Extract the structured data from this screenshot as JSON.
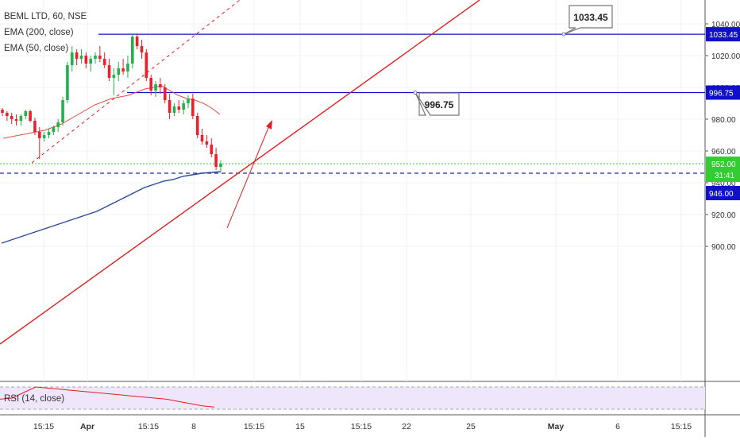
{
  "chart_data": {
    "type": "candlestick",
    "symbol": "BEML LTD, 60, NSE",
    "indicators": [
      "EMA (200, close)",
      "EMA (50, close)"
    ],
    "rsi_label": "RSI (14, close)",
    "colors": {
      "up": "#22b24c",
      "down": "#e8212b",
      "ema200": "#2a4a9a",
      "ema50": "#e34b3f",
      "hline": "#1010c8",
      "trend": "#e02020",
      "current": "#33cc33",
      "rsi_bg": "#efe6fb"
    },
    "y_axis": {
      "ticks": [
        "1040.00",
        "1020.00",
        "1000.00",
        "980.00",
        "960.00",
        "940.00",
        "920.00",
        "900.00"
      ],
      "ylim": [
        895,
        1048
      ]
    },
    "x_axis": {
      "ticks": [
        "15:15",
        "Apr",
        "15:15",
        "8",
        "15:15",
        "15",
        "15:15",
        "22",
        "25",
        "May",
        "6",
        "15:15"
      ]
    },
    "price_labels": {
      "resistance_high": "1033.45",
      "resistance_mid": "996.75",
      "current": "952.00",
      "countdown": "31:41",
      "support": "946.00"
    },
    "callouts": [
      "1033.45",
      "996.75"
    ],
    "candles": [
      [
        986,
        987,
        982,
        984
      ],
      [
        984,
        985,
        979,
        982
      ],
      [
        982,
        984,
        977,
        980
      ],
      [
        980,
        983,
        976,
        979
      ],
      [
        979,
        983,
        976,
        982
      ],
      [
        982,
        986,
        980,
        985
      ],
      [
        985,
        986,
        978,
        979
      ],
      [
        979,
        981,
        970,
        972
      ],
      [
        972,
        975,
        955,
        968
      ],
      [
        968,
        972,
        966,
        970
      ],
      [
        970,
        974,
        968,
        972
      ],
      [
        972,
        976,
        970,
        975
      ],
      [
        975,
        980,
        972,
        978
      ],
      [
        978,
        994,
        976,
        992
      ],
      [
        992,
        1016,
        990,
        1014
      ],
      [
        1014,
        1026,
        1010,
        1022
      ],
      [
        1022,
        1024,
        1014,
        1018
      ],
      [
        1018,
        1024,
        1015,
        1020
      ],
      [
        1020,
        1022,
        1012,
        1015
      ],
      [
        1015,
        1020,
        1010,
        1018
      ],
      [
        1018,
        1022,
        1015,
        1020
      ],
      [
        1020,
        1026,
        1016,
        1018
      ],
      [
        1018,
        1022,
        1012,
        1014
      ],
      [
        1014,
        1018,
        1004,
        1006
      ],
      [
        1006,
        1012,
        995,
        1008
      ],
      [
        1008,
        1016,
        1004,
        1012
      ],
      [
        1012,
        1018,
        1008,
        1010
      ],
      [
        1010,
        1020,
        1006,
        1015
      ],
      [
        1015,
        1034,
        1012,
        1032
      ],
      [
        1032,
        1034,
        1024,
        1026
      ],
      [
        1026,
        1030,
        1018,
        1022
      ],
      [
        1022,
        1024,
        1004,
        1006
      ],
      [
        1006,
        1008,
        995,
        998
      ],
      [
        998,
        1004,
        994,
        1002
      ],
      [
        1002,
        1006,
        996,
        1000
      ],
      [
        1000,
        1002,
        990,
        992
      ],
      [
        992,
        996,
        980,
        984
      ],
      [
        984,
        990,
        982,
        988
      ],
      [
        988,
        992,
        984,
        986
      ],
      [
        986,
        992,
        983,
        990
      ],
      [
        990,
        995,
        987,
        993
      ],
      [
        993,
        996,
        980,
        982
      ],
      [
        982,
        984,
        968,
        970
      ],
      [
        970,
        974,
        964,
        966
      ],
      [
        966,
        970,
        962,
        964
      ],
      [
        964,
        968,
        956,
        958
      ],
      [
        958,
        962,
        948,
        950
      ],
      [
        950,
        954,
        947,
        952
      ]
    ],
    "ema50": [
      968,
      969,
      970,
      971,
      972,
      973,
      975,
      977,
      980,
      983,
      986,
      989,
      991,
      993,
      994,
      995,
      997,
      999,
      1000,
      1001,
      998,
      995,
      993,
      992,
      990,
      987,
      983
    ],
    "ema200": [
      902,
      904,
      906,
      908,
      910,
      912,
      914,
      916,
      918,
      920,
      922,
      925,
      928,
      931,
      934,
      937,
      939,
      941,
      942,
      944,
      945,
      946,
      946.5,
      947
    ],
    "rsi": [
      48,
      50,
      60,
      70,
      68,
      66,
      64,
      62,
      60,
      58,
      56,
      54,
      52,
      50,
      48,
      44,
      40,
      36,
      34
    ]
  }
}
